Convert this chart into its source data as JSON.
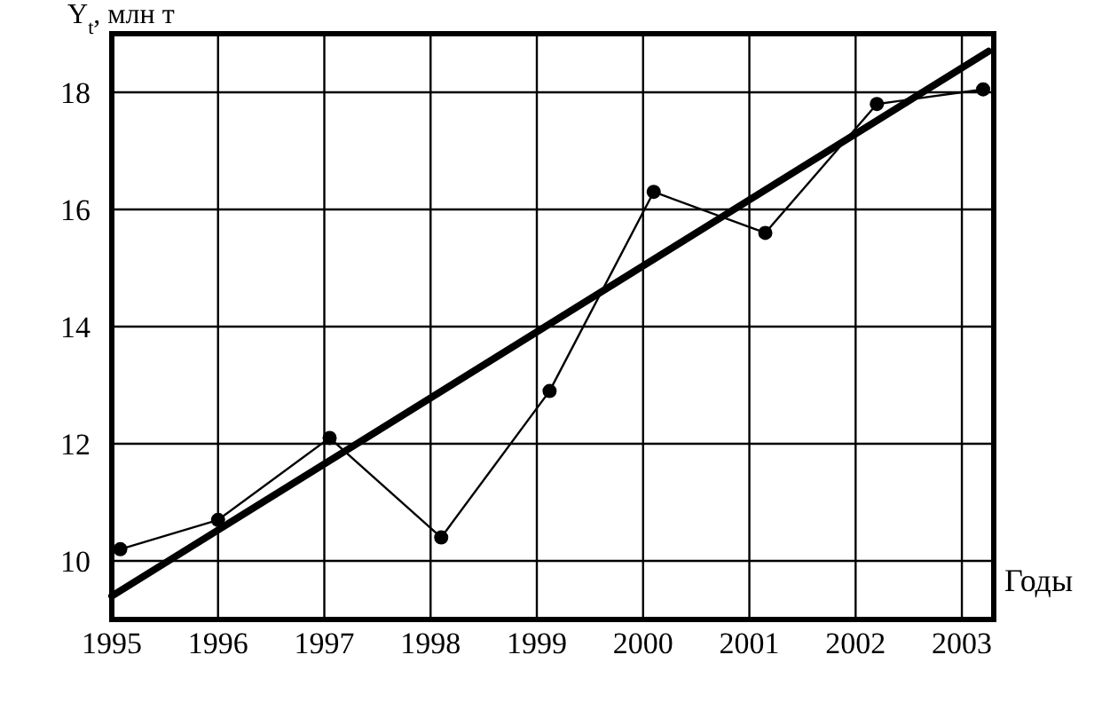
{
  "chart_data": {
    "type": "line",
    "ylabel": "Y$_{t}$, млн т",
    "xlabel": "Годы",
    "xlim": [
      1995,
      2003.3
    ],
    "xticks": [
      1995,
      1996,
      1997,
      1998,
      1999,
      2000,
      2001,
      2002,
      2003
    ],
    "ylim": [
      9,
      19
    ],
    "yticks": [
      10,
      12,
      14,
      16,
      18
    ],
    "grid": true,
    "series": [
      {
        "marker": "circle",
        "color": "#000000",
        "x": [
          1995.08,
          1996.0,
          1997.05,
          1998.1,
          1999.12,
          2000.1,
          2001.15,
          2002.2,
          2003.2
        ],
        "values": [
          10.2,
          10.7,
          12.1,
          10.4,
          12.9,
          16.3,
          15.6,
          17.8,
          18.05
        ]
      },
      {
        "marker": "none",
        "color": "#000000",
        "x": [
          1995,
          2003.25
        ],
        "values": [
          9.4,
          18.7
        ]
      }
    ]
  }
}
